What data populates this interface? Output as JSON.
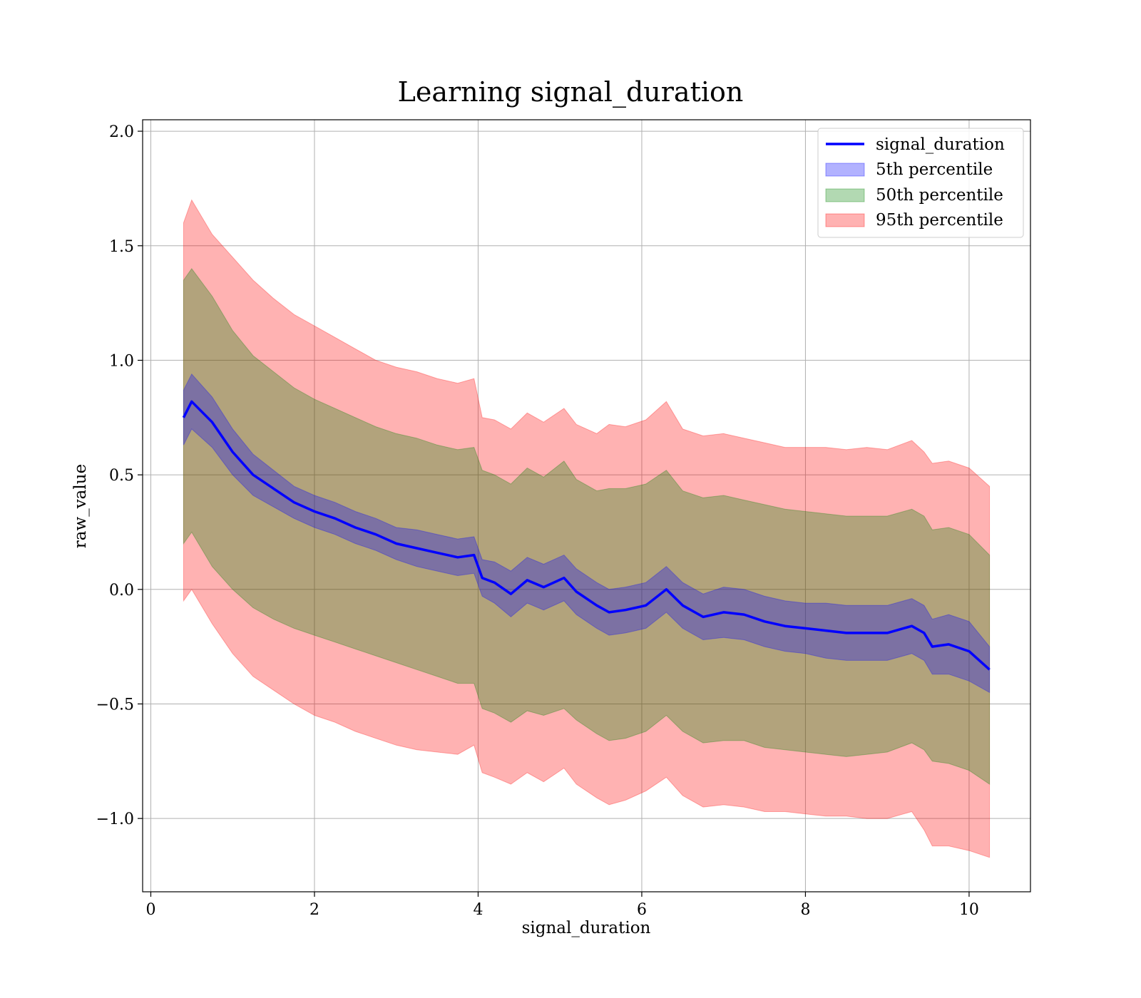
{
  "chart_data": {
    "type": "area",
    "title": "Learning signal_duration",
    "xlabel": "signal_duration",
    "ylabel": "raw_value",
    "xlim": [
      -0.1,
      10.75
    ],
    "ylim": [
      -1.32,
      2.05
    ],
    "x_ticks": [
      0,
      2,
      4,
      6,
      8,
      10
    ],
    "y_ticks": [
      -1.0,
      -0.5,
      0.0,
      0.5,
      1.0,
      1.5,
      2.0
    ],
    "x_tick_labels": [
      "0",
      "2",
      "4",
      "6",
      "8",
      "10"
    ],
    "y_tick_labels": [
      "−1.0",
      "−0.5",
      "0.0",
      "0.5",
      "1.0",
      "1.5",
      "2.0"
    ],
    "grid": true,
    "legend_position": "top-right",
    "x": [
      0.4,
      0.5,
      0.75,
      1.0,
      1.25,
      1.5,
      1.75,
      2.0,
      2.25,
      2.5,
      2.75,
      3.0,
      3.25,
      3.5,
      3.75,
      3.95,
      4.05,
      4.2,
      4.4,
      4.6,
      4.8,
      5.05,
      5.2,
      5.45,
      5.6,
      5.8,
      6.05,
      6.3,
      6.5,
      6.75,
      7.0,
      7.25,
      7.5,
      7.75,
      8.0,
      8.25,
      8.5,
      8.75,
      9.0,
      9.3,
      9.45,
      9.55,
      9.75,
      10.0,
      10.25
    ],
    "series": [
      {
        "name": "signal_duration",
        "color": "#0000ff",
        "kind": "line",
        "values": [
          0.75,
          0.82,
          0.73,
          0.6,
          0.5,
          0.44,
          0.38,
          0.34,
          0.31,
          0.27,
          0.24,
          0.2,
          0.18,
          0.16,
          0.14,
          0.15,
          0.05,
          0.03,
          -0.02,
          0.04,
          0.01,
          0.05,
          -0.01,
          -0.07,
          -0.1,
          -0.09,
          -0.07,
          0.0,
          -0.07,
          -0.12,
          -0.1,
          -0.11,
          -0.14,
          -0.16,
          -0.17,
          -0.18,
          -0.19,
          -0.19,
          -0.19,
          -0.16,
          -0.19,
          -0.25,
          -0.24,
          -0.27,
          -0.35
        ]
      },
      {
        "name": "5th percentile",
        "color": "#0000ff",
        "kind": "band",
        "lower": [
          0.63,
          0.7,
          0.62,
          0.5,
          0.41,
          0.36,
          0.31,
          0.27,
          0.24,
          0.2,
          0.17,
          0.13,
          0.1,
          0.08,
          0.06,
          0.07,
          -0.03,
          -0.06,
          -0.12,
          -0.06,
          -0.09,
          -0.05,
          -0.11,
          -0.17,
          -0.2,
          -0.19,
          -0.17,
          -0.1,
          -0.17,
          -0.22,
          -0.21,
          -0.22,
          -0.25,
          -0.27,
          -0.28,
          -0.3,
          -0.31,
          -0.31,
          -0.31,
          -0.28,
          -0.31,
          -0.37,
          -0.37,
          -0.4,
          -0.45
        ],
        "upper": [
          0.87,
          0.94,
          0.84,
          0.7,
          0.59,
          0.52,
          0.45,
          0.41,
          0.38,
          0.34,
          0.31,
          0.27,
          0.26,
          0.24,
          0.22,
          0.23,
          0.13,
          0.12,
          0.08,
          0.14,
          0.11,
          0.15,
          0.09,
          0.03,
          0.0,
          0.01,
          0.03,
          0.1,
          0.03,
          -0.02,
          0.01,
          0.0,
          -0.03,
          -0.05,
          -0.06,
          -0.06,
          -0.07,
          -0.07,
          -0.07,
          -0.04,
          -0.07,
          -0.13,
          -0.11,
          -0.14,
          -0.25
        ]
      },
      {
        "name": "50th percentile",
        "color": "#008000",
        "kind": "band",
        "lower": [
          0.2,
          0.25,
          0.1,
          0.0,
          -0.08,
          -0.13,
          -0.17,
          -0.2,
          -0.23,
          -0.26,
          -0.29,
          -0.32,
          -0.35,
          -0.38,
          -0.41,
          -0.41,
          -0.52,
          -0.54,
          -0.58,
          -0.53,
          -0.55,
          -0.52,
          -0.57,
          -0.63,
          -0.66,
          -0.65,
          -0.62,
          -0.55,
          -0.62,
          -0.67,
          -0.66,
          -0.66,
          -0.69,
          -0.7,
          -0.71,
          -0.72,
          -0.73,
          -0.72,
          -0.71,
          -0.67,
          -0.7,
          -0.75,
          -0.76,
          -0.79,
          -0.85
        ]
      },
      {
        "name": "95th percentile",
        "color": "#ff0000",
        "kind": "band",
        "lower": [
          -0.05,
          0.0,
          -0.15,
          -0.28,
          -0.38,
          -0.44,
          -0.5,
          -0.55,
          -0.58,
          -0.62,
          -0.65,
          -0.68,
          -0.7,
          -0.71,
          -0.72,
          -0.68,
          -0.8,
          -0.82,
          -0.85,
          -0.8,
          -0.84,
          -0.78,
          -0.85,
          -0.91,
          -0.94,
          -0.92,
          -0.88,
          -0.82,
          -0.9,
          -0.95,
          -0.94,
          -0.95,
          -0.97,
          -0.97,
          -0.98,
          -0.99,
          -0.99,
          -1.0,
          -1.0,
          -0.97,
          -1.05,
          -1.12,
          -1.12,
          -1.14,
          -1.17
        ],
        "upper": [
          1.6,
          1.7,
          1.55,
          1.45,
          1.35,
          1.27,
          1.2,
          1.15,
          1.1,
          1.05,
          1.0,
          0.97,
          0.95,
          0.92,
          0.9,
          0.92,
          0.75,
          0.74,
          0.7,
          0.77,
          0.73,
          0.79,
          0.72,
          0.68,
          0.72,
          0.71,
          0.74,
          0.82,
          0.7,
          0.67,
          0.68,
          0.66,
          0.64,
          0.62,
          0.62,
          0.62,
          0.61,
          0.62,
          0.61,
          0.65,
          0.6,
          0.55,
          0.56,
          0.53,
          0.45
        ]
      }
    ],
    "upper_50th": [
      1.35,
      1.4,
      1.28,
      1.13,
      1.02,
      0.95,
      0.88,
      0.83,
      0.79,
      0.75,
      0.71,
      0.68,
      0.66,
      0.63,
      0.61,
      0.62,
      0.52,
      0.5,
      0.46,
      0.53,
      0.49,
      0.56,
      0.48,
      0.43,
      0.44,
      0.44,
      0.46,
      0.52,
      0.43,
      0.4,
      0.41,
      0.39,
      0.37,
      0.35,
      0.34,
      0.33,
      0.32,
      0.32,
      0.32,
      0.35,
      0.32,
      0.26,
      0.27,
      0.24,
      0.15
    ]
  }
}
